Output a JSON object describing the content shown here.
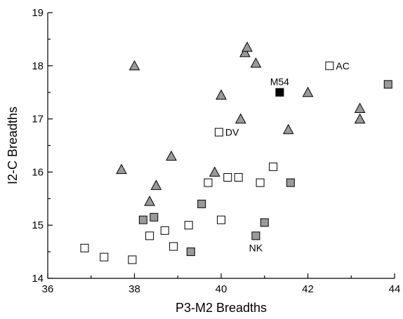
{
  "chart_data": {
    "type": "scatter",
    "xlabel": "P3-M2 Breadths",
    "ylabel": "I2-C Breadths",
    "xlim": [
      36,
      44
    ],
    "ylim": [
      14,
      19
    ],
    "x_ticks": [
      "36",
      "38",
      "40",
      "42",
      "44"
    ],
    "y_ticks": [
      "14",
      "15",
      "16",
      "17",
      "18",
      "19"
    ],
    "grid": false,
    "legend": "none",
    "series": [
      {
        "marker": "open-square",
        "color": "#ffffff",
        "points": [
          {
            "x": 36.85,
            "y": 14.57
          },
          {
            "x": 37.3,
            "y": 14.4
          },
          {
            "x": 37.95,
            "y": 14.35
          },
          {
            "x": 38.35,
            "y": 14.8
          },
          {
            "x": 38.7,
            "y": 14.9
          },
          {
            "x": 38.9,
            "y": 14.6
          },
          {
            "x": 39.25,
            "y": 15.0
          },
          {
            "x": 39.95,
            "y": 16.75
          },
          {
            "x": 40.0,
            "y": 15.1
          },
          {
            "x": 39.7,
            "y": 15.8
          },
          {
            "x": 40.15,
            "y": 15.9
          },
          {
            "x": 40.4,
            "y": 15.9
          },
          {
            "x": 40.9,
            "y": 15.8
          },
          {
            "x": 41.2,
            "y": 16.1
          },
          {
            "x": 42.5,
            "y": 18.0
          }
        ]
      },
      {
        "marker": "filled-square",
        "color": "#9a9a9a",
        "points": [
          {
            "x": 38.2,
            "y": 15.1
          },
          {
            "x": 38.45,
            "y": 15.15
          },
          {
            "x": 39.3,
            "y": 14.5
          },
          {
            "x": 39.55,
            "y": 15.4
          },
          {
            "x": 40.8,
            "y": 14.8
          },
          {
            "x": 41.0,
            "y": 15.05
          },
          {
            "x": 41.6,
            "y": 15.8
          },
          {
            "x": 43.85,
            "y": 17.65
          }
        ]
      },
      {
        "marker": "triangle",
        "color": "#9a9a9a",
        "points": [
          {
            "x": 37.7,
            "y": 16.05
          },
          {
            "x": 38.0,
            "y": 18.0
          },
          {
            "x": 38.35,
            "y": 15.45
          },
          {
            "x": 38.5,
            "y": 15.75
          },
          {
            "x": 38.85,
            "y": 16.3
          },
          {
            "x": 39.85,
            "y": 16.0
          },
          {
            "x": 40.0,
            "y": 17.45
          },
          {
            "x": 40.45,
            "y": 17.0
          },
          {
            "x": 40.55,
            "y": 18.25
          },
          {
            "x": 40.6,
            "y": 18.35
          },
          {
            "x": 40.8,
            "y": 18.05
          },
          {
            "x": 41.55,
            "y": 16.8
          },
          {
            "x": 42.0,
            "y": 17.5
          },
          {
            "x": 43.2,
            "y": 17.2
          },
          {
            "x": 43.2,
            "y": 17.0
          }
        ]
      },
      {
        "marker": "black-square",
        "color": "#000000",
        "points": [
          {
            "x": 41.35,
            "y": 17.5
          }
        ]
      }
    ],
    "annotations": [
      {
        "text": "AC",
        "x": 42.5,
        "y": 18.0,
        "anchor": "right"
      },
      {
        "text": "M54",
        "x": 41.35,
        "y": 17.5,
        "anchor": "above"
      },
      {
        "text": "DV",
        "x": 39.95,
        "y": 16.75,
        "anchor": "right"
      },
      {
        "text": "NK",
        "x": 40.8,
        "y": 14.8,
        "anchor": "below"
      }
    ]
  }
}
